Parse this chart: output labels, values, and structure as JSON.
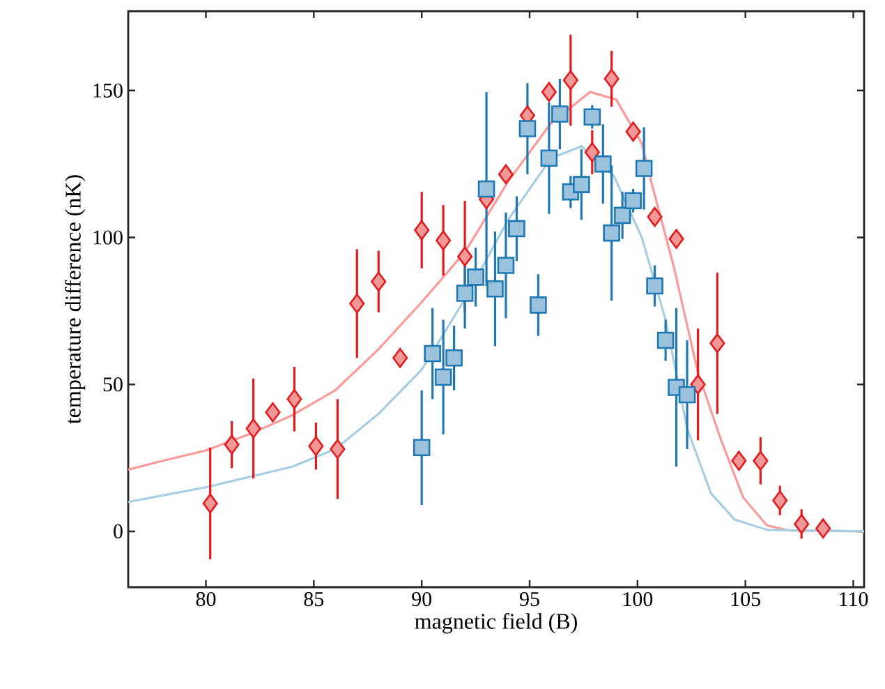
{
  "chart_data": {
    "type": "scatter",
    "xlabel": "magnetic field (B)",
    "ylabel": "temperature difference (nK)",
    "xlim": [
      76.4,
      110.5
    ],
    "ylim": [
      -19,
      177
    ],
    "xticks": [
      80,
      85,
      90,
      95,
      100,
      105,
      110
    ],
    "yticks": [
      0,
      50,
      100,
      150
    ],
    "series": [
      {
        "type": "line",
        "color": "#fb9a99",
        "marker": "none",
        "x": [
          76.4,
          78,
          80,
          82,
          84,
          86,
          88,
          90,
          92,
          94,
          96,
          97.8,
          99,
          100.2,
          100.6,
          101.7,
          102.8,
          103.9,
          104.9,
          106,
          107,
          110.5
        ],
        "values": [
          21,
          24,
          27.5,
          33,
          39.5,
          48,
          62,
          78,
          95,
          119,
          139,
          149.5,
          147,
          132,
          120,
          89.5,
          54,
          30.5,
          11.5,
          2,
          0.3,
          0
        ]
      },
      {
        "type": "line",
        "color": "#a6cee3",
        "marker": "none",
        "x": [
          76.4,
          80,
          84,
          86,
          88,
          90,
          92,
          94,
          96,
          97.4,
          98.9,
          100.2,
          101.3,
          102.3,
          103.4,
          104.5,
          106,
          110.5
        ],
        "values": [
          10,
          15,
          22,
          28,
          40,
          55,
          79,
          106,
          127,
          131,
          121,
          100,
          72,
          35,
          13,
          4,
          0.5,
          0
        ]
      },
      {
        "color": "#e41a1c",
        "marker": "diamond",
        "x": [
          80.2,
          81.2,
          82.2,
          83.1,
          84.1,
          85.1,
          86.1,
          87.0,
          88.0,
          89.0,
          90.0,
          91.0,
          92.0,
          93.0,
          93.9,
          94.9,
          95.9,
          96.9,
          97.9,
          98.8,
          99.8,
          100.8,
          101.8,
          102.8,
          103.7,
          104.7,
          105.7,
          106.6,
          107.6,
          108.6
        ],
        "values": [
          9.5,
          29.5,
          35,
          40.5,
          45,
          29,
          28,
          77.5,
          85,
          59,
          102.5,
          99,
          93.5,
          113,
          121.5,
          141.5,
          149.5,
          153.5,
          129,
          154,
          136,
          107,
          99.5,
          50,
          64,
          24,
          24,
          10.5,
          2.5,
          1
        ],
        "errors": [
          19,
          8,
          17,
          null,
          11,
          8,
          17,
          18.5,
          10.5,
          null,
          13,
          12,
          19,
          null,
          null,
          null,
          null,
          15.5,
          7.5,
          9.5,
          null,
          null,
          null,
          19,
          24,
          null,
          8,
          5,
          5,
          null
        ]
      },
      {
        "color": "#1f78b4",
        "marker": "square",
        "x": [
          90.0,
          90.5,
          91.0,
          91.5,
          92.0,
          92.5,
          93.0,
          93.4,
          93.9,
          94.4,
          95.4,
          94.9,
          95.9,
          96.4,
          96.9,
          97.4,
          97.9,
          98.4,
          98.8,
          99.3,
          99.8,
          100.3,
          100.8,
          101.3,
          101.8,
          102.3
        ],
        "values": [
          28.5,
          60.5,
          52.5,
          59,
          81,
          86.5,
          116.5,
          82.5,
          90.5,
          103,
          77,
          137,
          127,
          142,
          115.5,
          118,
          141,
          125,
          101.5,
          107.5,
          112.5,
          123.5,
          83.5,
          65,
          49,
          46.5
        ],
        "errors": [
          19.5,
          15.5,
          19.5,
          11,
          12,
          10,
          33,
          19.5,
          18,
          11,
          10.5,
          15.5,
          19,
          12,
          5.5,
          12,
          4,
          13.5,
          23,
          8,
          4,
          14,
          7,
          7,
          27,
          18.5
        ]
      }
    ]
  }
}
